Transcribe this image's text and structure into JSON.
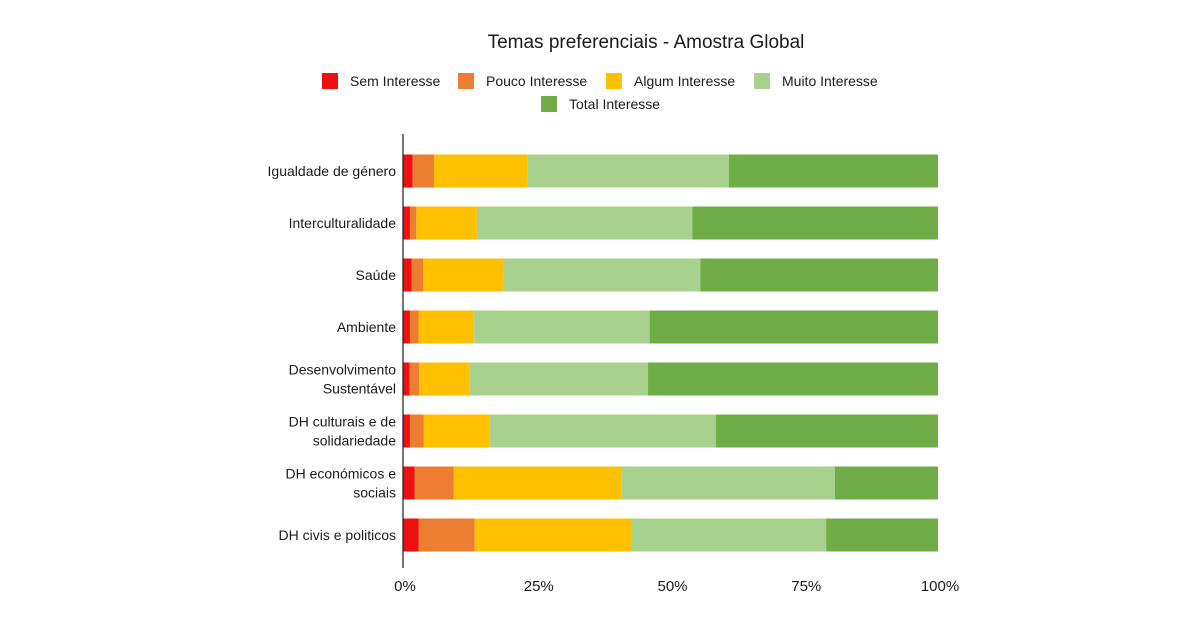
{
  "chart_data": {
    "type": "bar",
    "orientation": "horizontal",
    "stacked": "percent",
    "title": "Temas preferenciais - Amostra Global",
    "xlabel": "",
    "ylabel": "",
    "xlim": [
      0,
      100
    ],
    "x_ticks": [
      "0%",
      "25%",
      "50%",
      "75%",
      "100%"
    ],
    "grid": false,
    "legend_position": "top",
    "categories": [
      [
        "Igualdade de género"
      ],
      [
        "Interculturalidade"
      ],
      [
        "Saúde"
      ],
      [
        "Ambiente"
      ],
      [
        "Desenvolvimento",
        "Sustentável"
      ],
      [
        "DH culturais e de",
        "solidariedade"
      ],
      [
        "DH económicos e",
        "sociais"
      ],
      [
        "DH civis e politicos"
      ]
    ],
    "series": [
      {
        "name": "Sem Interesse",
        "color": "#ee1111",
        "values": [
          1.8,
          1.3,
          1.6,
          1.3,
          1.2,
          1.3,
          2.2,
          2.9
        ]
      },
      {
        "name": "Pouco Interesse",
        "color": "#ed7d31",
        "values": [
          4.0,
          1.2,
          2.2,
          1.6,
          1.8,
          2.6,
          7.3,
          10.5
        ]
      },
      {
        "name": "Algum Interesse",
        "color": "#ffc000",
        "values": [
          17.5,
          11.3,
          15.0,
          10.4,
          9.4,
          12.3,
          31.4,
          29.4
        ]
      },
      {
        "name": "Muito Interesse",
        "color": "#a9d18e",
        "values": [
          37.6,
          40.3,
          36.8,
          32.8,
          33.4,
          42.3,
          39.8,
          36.3
        ]
      },
      {
        "name": "Total Interesse",
        "color": "#70ad47",
        "values": [
          39.1,
          45.9,
          44.4,
          53.9,
          54.2,
          41.5,
          19.3,
          20.9
        ]
      }
    ]
  }
}
